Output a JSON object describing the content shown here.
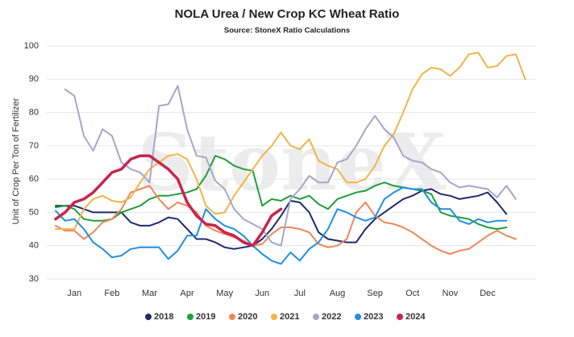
{
  "chart_data": {
    "type": "line",
    "title": "NOLA Urea / New Crop KC Wheat Ratio",
    "subtitle": "Source: StoneX Ratio Calculations",
    "watermark": "StoneX",
    "ylabel": "Unit of Crop Per Ton of Fertilizer",
    "categories": [
      null,
      null,
      "Jan",
      null,
      null,
      null,
      "Feb",
      null,
      null,
      null,
      "Mar",
      null,
      null,
      null,
      "Apr",
      null,
      null,
      null,
      "May",
      null,
      null,
      null,
      "Jun",
      null,
      null,
      null,
      "Jul",
      null,
      null,
      null,
      "Aug",
      null,
      null,
      null,
      "Sep",
      null,
      null,
      null,
      "Oct",
      null,
      null,
      null,
      "Nov",
      null,
      null,
      null,
      "Dec",
      null,
      null,
      null,
      null
    ],
    "ylim": [
      30,
      100
    ],
    "yticks": [
      30,
      40,
      50,
      60,
      70,
      80,
      90,
      100
    ],
    "grid": true,
    "legend": "bottom",
    "series": [
      {
        "name": "2018",
        "color": "#1f2a6e",
        "values": [
          52,
          52,
          52,
          51,
          50,
          50,
          50,
          50,
          47,
          46,
          46,
          47,
          48.5,
          48,
          45,
          42,
          42,
          41,
          39.5,
          39,
          39.5,
          40,
          42,
          45,
          49,
          53.5,
          53,
          50,
          44,
          42,
          41.5,
          41,
          41,
          45,
          48,
          50,
          52,
          54,
          55,
          56.5,
          57,
          55.5,
          55,
          54,
          54.5,
          55,
          56,
          53,
          49.5,
          null,
          null
        ]
      },
      {
        "name": "2019",
        "color": "#1e9e3a",
        "values": [
          51.5,
          52,
          51,
          48,
          47.5,
          47.5,
          48,
          50,
          51,
          52,
          54,
          55,
          55,
          55.5,
          56,
          57,
          61,
          67,
          66,
          64,
          63,
          62.5,
          52,
          54,
          53.5,
          55,
          54,
          55,
          52.5,
          51,
          54,
          55,
          56,
          56.5,
          58,
          59,
          58,
          57.5,
          57,
          56.5,
          55.5,
          50,
          49,
          48.5,
          48,
          46.5,
          45.5,
          45,
          45.5,
          null,
          null
        ]
      },
      {
        "name": "2020",
        "color": "#f0875a",
        "values": [
          46,
          44.5,
          44.5,
          42,
          44,
          47,
          48,
          51,
          56,
          57,
          58,
          54,
          51,
          53,
          52,
          50,
          46,
          44.5,
          43.5,
          42.5,
          41.5,
          40,
          40.5,
          43.5,
          45.5,
          45.5,
          45,
          44,
          40.5,
          39.5,
          40,
          42,
          50,
          53,
          49,
          47,
          46.5,
          45.5,
          44,
          42,
          40,
          38.5,
          37.5,
          38.5,
          39,
          41,
          43,
          44.5,
          43,
          42,
          null
        ]
      },
      {
        "name": "2021",
        "color": "#f2b448",
        "values": [
          45,
          45,
          45,
          51,
          54,
          55,
          53.5,
          53,
          54.5,
          59,
          63,
          65,
          67,
          67.5,
          66,
          60,
          52,
          49.5,
          50,
          55,
          59,
          63,
          67,
          70,
          74,
          70,
          69,
          72,
          65.5,
          64,
          63,
          59,
          59,
          60,
          64,
          70,
          73.5,
          80,
          87,
          91.5,
          93.5,
          93,
          91,
          93.5,
          97.5,
          98,
          93.5,
          94,
          97,
          97.5,
          90
        ]
      },
      {
        "name": "2022",
        "color": "#a6a6cc",
        "values": [
          null,
          87,
          85,
          73,
          68.5,
          75,
          73,
          65,
          63,
          62,
          59,
          82,
          82.5,
          88,
          75,
          67,
          66.5,
          59.5,
          57,
          51,
          48,
          46.5,
          45,
          41,
          40,
          54,
          57,
          61,
          59,
          59,
          65,
          66,
          70,
          75,
          79,
          75,
          72.5,
          67,
          65.5,
          65,
          63,
          62,
          59,
          57.5,
          58,
          57.5,
          57,
          54.5,
          58,
          54,
          null
        ]
      },
      {
        "name": "2023",
        "color": "#1f8fe6",
        "values": [
          50.5,
          47.5,
          48,
          45,
          41,
          39,
          36.5,
          37,
          39,
          39.5,
          39.5,
          39.5,
          36,
          38.5,
          43,
          43,
          51,
          48,
          46,
          45,
          43,
          40,
          37.5,
          35.5,
          34.5,
          38,
          35.5,
          39,
          41,
          45,
          51,
          50,
          48.5,
          47.5,
          48.5,
          54,
          56,
          57.5,
          57,
          57,
          53,
          51,
          51,
          47.5,
          46.5,
          48,
          47,
          47.5,
          47.5,
          null,
          null
        ]
      },
      {
        "name": "2024",
        "color": "#c8254d",
        "values": [
          48,
          50,
          53,
          54,
          56,
          59,
          62,
          63,
          66,
          67,
          67,
          65,
          63,
          60,
          53,
          49,
          46.5,
          46,
          44,
          43,
          41,
          40,
          44,
          49,
          51,
          null,
          null,
          null,
          null,
          null,
          null,
          null,
          null,
          null,
          null,
          null,
          null,
          null,
          null,
          null,
          null,
          null,
          null,
          null,
          null,
          null,
          null,
          null,
          null,
          null,
          null
        ]
      }
    ]
  }
}
